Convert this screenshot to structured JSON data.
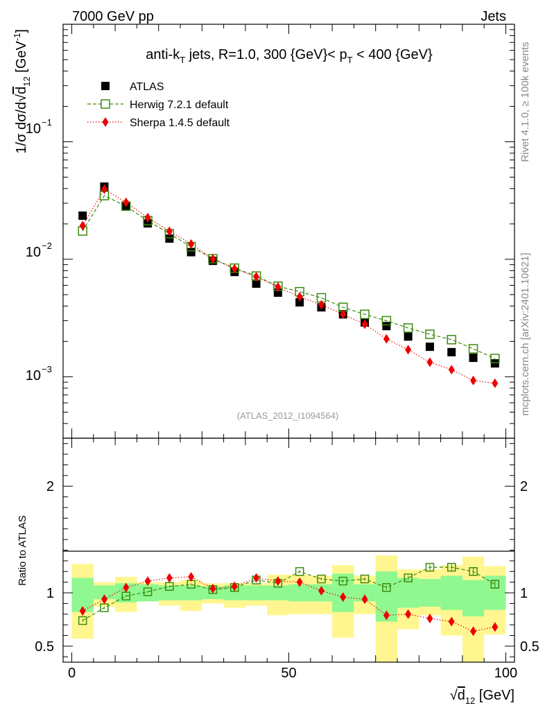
{
  "header": {
    "left": "7000 GeV pp",
    "right": "Jets"
  },
  "side_labels": {
    "rivet": "Rivet 4.1.0, ≥ 100k events",
    "mcplots": "mcplots.cern.ch [arXiv:2401.10621]"
  },
  "chart_data": [
    {
      "type": "scatter",
      "panel": "main",
      "title": "anti-kT jets, R=1.0, 300 {GeV}< pT < 400 {GeV}",
      "title_parts": {
        "a": "anti-k",
        "a_sub": "T",
        "b": " jets, R=1.0, 300 {GeV}< p",
        "b_sub": "T",
        "c": " < 400 {GeV}"
      },
      "analysis_label": "(ATLAS_2012_I1094564)",
      "ylabel": "1/σ dσ/d√d12 [GeV-1]",
      "ylabel_parts": {
        "a": "1/σ dσ/d",
        "sqrt": "√",
        "d": "d",
        "d_sub": "12",
        "b": " [GeV",
        "sup": "-1",
        "c": "]"
      },
      "yscale": "log",
      "ylim": [
        0.0003,
        1
      ],
      "xlim": [
        -2,
        102
      ],
      "ytick_labels": [
        {
          "value": 0.1,
          "mant": "10",
          "exp": "−1"
        },
        {
          "value": 0.01,
          "mant": "10",
          "exp": "−2"
        },
        {
          "value": 0.001,
          "mant": "10",
          "exp": "−3"
        }
      ],
      "legend_position": "top-left",
      "x": [
        2.5,
        7.5,
        12.5,
        17.5,
        22.5,
        27.5,
        32.5,
        37.5,
        42.5,
        47.5,
        52.5,
        57.5,
        62.5,
        67.5,
        72.5,
        77.5,
        82.5,
        87.5,
        92.5,
        97.5
      ],
      "series": [
        {
          "name": "ATLAS",
          "marker": "filled-square",
          "color": "#000000",
          "values": [
            0.0235,
            0.0415,
            0.0285,
            0.0202,
            0.015,
            0.0115,
            0.0097,
            0.0078,
            0.0062,
            0.0052,
            0.0043,
            0.0039,
            0.0034,
            0.0029,
            0.0027,
            0.0022,
            0.0018,
            0.00162,
            0.00145,
            0.0013
          ]
        },
        {
          "name": "Herwig 7.2.1 default",
          "marker": "open-square",
          "line": "dashed",
          "color": "#3a8a0b",
          "values": [
            0.0174,
            0.0348,
            0.0283,
            0.0213,
            0.0165,
            0.0128,
            0.0101,
            0.0084,
            0.0072,
            0.0059,
            0.0053,
            0.0047,
            0.0039,
            0.0034,
            0.003,
            0.0026,
            0.0023,
            0.00207,
            0.00173,
            0.00143
          ]
        },
        {
          "name": "Sherpa 1.4.5 default",
          "marker": "filled-diamond",
          "line": "dotted",
          "color": "#ee0000",
          "values": [
            0.0193,
            0.0395,
            0.0305,
            0.0226,
            0.0173,
            0.0135,
            0.0101,
            0.0083,
            0.0071,
            0.0058,
            0.0048,
            0.0041,
            0.0034,
            0.0028,
            0.0021,
            0.0017,
            0.00133,
            0.00115,
            0.00093,
            0.00088
          ]
        }
      ]
    },
    {
      "type": "scatter",
      "panel": "ratio",
      "ylabel": "Ratio to ATLAS",
      "xlabel": "√d12 [GeV]",
      "xlabel_parts": {
        "sqrt": "√",
        "d": "d",
        "d_sub": "12",
        "unit": " [GeV]"
      },
      "ylim": [
        0.35,
        2.45
      ],
      "xlim": [
        -2,
        102
      ],
      "xticks": [
        {
          "value": 0,
          "label": "0"
        },
        {
          "value": 50,
          "label": "50"
        },
        {
          "value": 100,
          "label": "100"
        }
      ],
      "yticks": [
        {
          "value": 0.5,
          "label": "0.5"
        },
        {
          "value": 1,
          "label": "1"
        },
        {
          "value": 2,
          "label": "2"
        }
      ],
      "x": [
        2.5,
        7.5,
        12.5,
        17.5,
        22.5,
        27.5,
        32.5,
        37.5,
        42.5,
        47.5,
        52.5,
        57.5,
        62.5,
        67.5,
        72.5,
        77.5,
        82.5,
        87.5,
        92.5,
        97.5
      ],
      "bin_edges": [
        0,
        5,
        10,
        15,
        20,
        25,
        30,
        35,
        40,
        45,
        50,
        55,
        60,
        65,
        70,
        75,
        80,
        85,
        90,
        95,
        100
      ],
      "bands": {
        "stat_color": "#90f890",
        "total_color": "#fff68f",
        "stat": [
          [
            0.82,
            1.14
          ],
          [
            0.94,
            1.07
          ],
          [
            0.91,
            1.09
          ],
          [
            0.92,
            1.08
          ],
          [
            0.93,
            1.07
          ],
          [
            0.93,
            1.07
          ],
          [
            0.94,
            1.06
          ],
          [
            0.93,
            1.07
          ],
          [
            0.93,
            1.07
          ],
          [
            0.93,
            1.07
          ],
          [
            0.92,
            1.08
          ],
          [
            0.92,
            1.08
          ],
          [
            0.82,
            1.18
          ],
          [
            0.92,
            1.08
          ],
          [
            0.73,
            1.2
          ],
          [
            0.86,
            1.14
          ],
          [
            0.87,
            1.13
          ],
          [
            0.84,
            1.16
          ],
          [
            0.78,
            1.12
          ],
          [
            0.84,
            1.16
          ]
        ],
        "total": [
          [
            0.57,
            1.27
          ],
          [
            0.87,
            1.1
          ],
          [
            0.82,
            1.15
          ],
          [
            0.92,
            1.1
          ],
          [
            0.88,
            1.1
          ],
          [
            0.83,
            1.12
          ],
          [
            0.9,
            1.09
          ],
          [
            0.86,
            1.09
          ],
          [
            0.88,
            1.09
          ],
          [
            0.79,
            1.17
          ],
          [
            0.8,
            1.17
          ],
          [
            0.8,
            1.16
          ],
          [
            0.58,
            1.26
          ],
          [
            0.8,
            1.16
          ],
          [
            0.35,
            1.35
          ],
          [
            0.66,
            1.22
          ],
          [
            0.79,
            1.22
          ],
          [
            0.6,
            1.26
          ],
          [
            0.35,
            1.34
          ],
          [
            0.61,
            1.25
          ]
        ]
      },
      "reference_line": 1,
      "series": [
        {
          "name": "Herwig 7.2.1 default",
          "color": "#3a8a0b",
          "values": [
            0.74,
            0.86,
            0.97,
            1.01,
            1.06,
            1.08,
            1.03,
            1.05,
            1.12,
            1.09,
            1.2,
            1.13,
            1.11,
            1.13,
            1.05,
            1.14,
            1.24,
            1.24,
            1.2,
            1.08
          ],
          "errors": [
            0.012,
            0.01,
            0.01,
            0.01,
            0.01,
            0.01,
            0.01,
            0.01,
            0.012,
            0.012,
            0.014,
            0.014,
            0.016,
            0.016,
            0.02,
            0.022,
            0.026,
            0.03,
            0.034,
            0.038
          ]
        },
        {
          "name": "Sherpa 1.4.5 default",
          "color": "#ee0000",
          "values": [
            0.83,
            0.94,
            1.05,
            1.11,
            1.14,
            1.15,
            1.04,
            1.06,
            1.14,
            1.11,
            1.1,
            1.02,
            0.96,
            0.94,
            0.79,
            0.8,
            0.76,
            0.73,
            0.64,
            0.68
          ],
          "errors": [
            0.012,
            0.01,
            0.01,
            0.01,
            0.01,
            0.012,
            0.012,
            0.012,
            0.014,
            0.014,
            0.016,
            0.018,
            0.02,
            0.022,
            0.024,
            0.028,
            0.03,
            0.034,
            0.038,
            0.042
          ]
        }
      ]
    }
  ]
}
